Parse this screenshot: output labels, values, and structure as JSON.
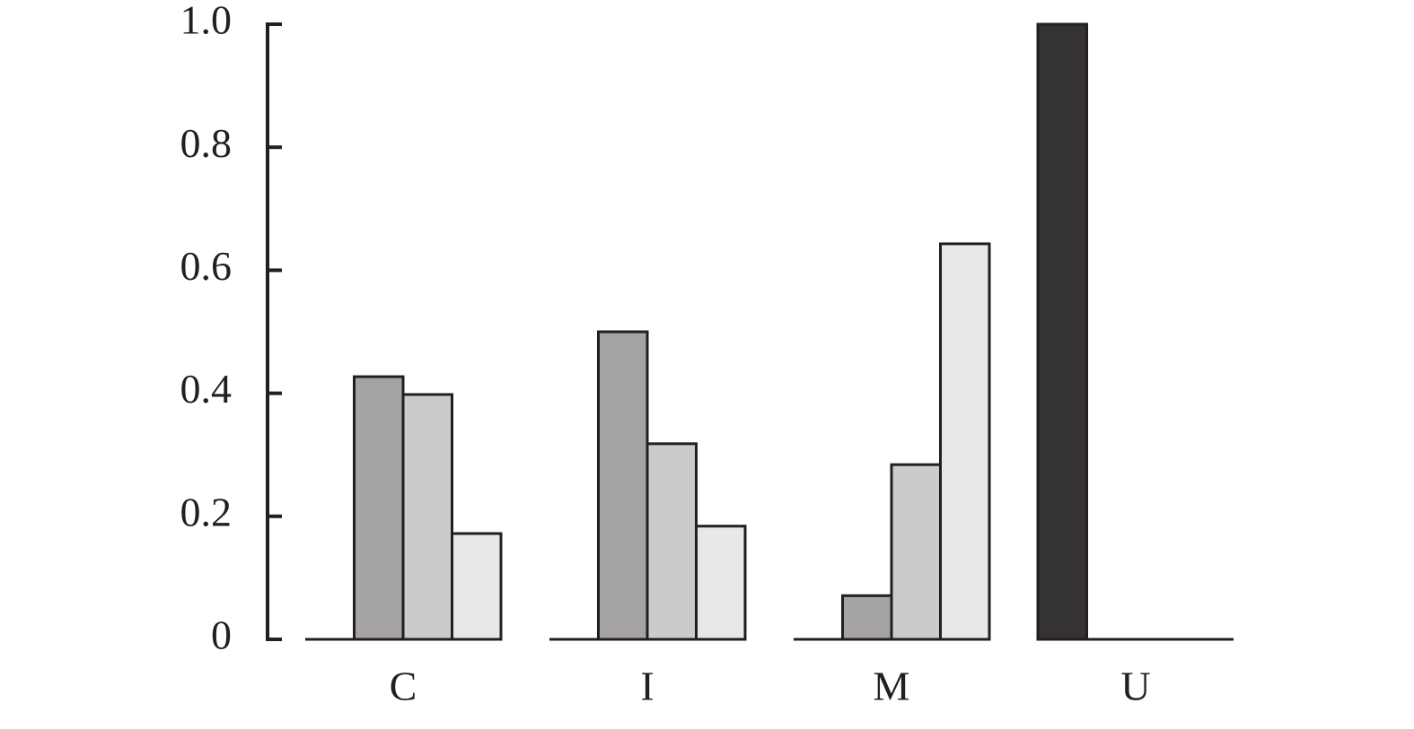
{
  "chart_data": {
    "type": "bar",
    "categories": [
      "C",
      "I",
      "M",
      "U"
    ],
    "series": [
      {
        "color": "#353233",
        "values": [
          0,
          0,
          0,
          1.0
        ]
      },
      {
        "color": "#a5a3a4",
        "values": [
          0.427,
          0.5,
          0.071,
          0
        ]
      },
      {
        "color": "#cbcbcb",
        "values": [
          0.398,
          0.318,
          0.284,
          0
        ]
      },
      {
        "color": "#e8e8e8",
        "values": [
          0.172,
          0.184,
          0.643,
          0
        ]
      }
    ],
    "ylim": [
      0,
      1
    ],
    "yticks": [
      0,
      0.2,
      0.4,
      0.6,
      0.8,
      {
        "value": 1,
        "label": "1.0"
      }
    ],
    "grid": false
  }
}
